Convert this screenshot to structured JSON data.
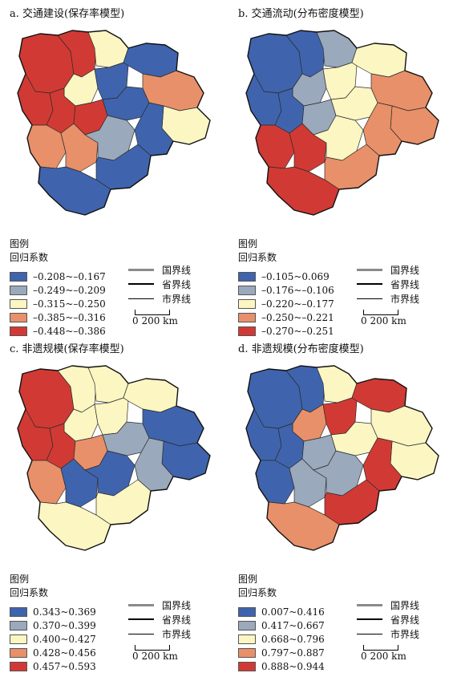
{
  "colors": {
    "blue": "#3f64ad",
    "grey_blue": "#9aa9bb",
    "pale_yellow": "#fbf6c2",
    "orange": "#e89069",
    "red": "#d13a34",
    "border_national": "#8a8a8a",
    "border_provincial": "#000000",
    "border_city": "#000000"
  },
  "panels": [
    {
      "title": "a. 交通建设(保存率模型)",
      "legend_title_1": "图例",
      "legend_title_2": "回归系数",
      "classes": [
        {
          "label": "–0.208~–0.167",
          "color": "#3f64ad"
        },
        {
          "label": "–0.249~–0.209",
          "color": "#9aa9bb"
        },
        {
          "label": "–0.315~–0.250",
          "color": "#fbf6c2"
        },
        {
          "label": "–0.385~–0.316",
          "color": "#e89069"
        },
        {
          "label": "–0.448~–0.386",
          "color": "#d13a34"
        }
      ],
      "regions": [
        "red",
        "red",
        "yellow",
        "blue",
        "red",
        "yellow",
        "blue",
        "red",
        "red",
        "blue",
        "orange",
        "yellow",
        "blue",
        "orange",
        "orange",
        "grey",
        "blue",
        "blue"
      ]
    },
    {
      "title": "b. 交通流动(分布密度模型)",
      "legend_title_1": "图例",
      "legend_title_2": "回归系数",
      "classes": [
        {
          "label": "–0.105~0.069",
          "color": "#3f64ad"
        },
        {
          "label": "–0.176~–0.106",
          "color": "#9aa9bb"
        },
        {
          "label": "–0.220~–0.177",
          "color": "#fbf6c2"
        },
        {
          "label": "–0.250~–0.221",
          "color": "#e89069"
        },
        {
          "label": "–0.270~–0.251",
          "color": "#d13a34"
        }
      ],
      "regions": [
        "blue",
        "blue",
        "grey",
        "yellow",
        "blue",
        "grey",
        "yellow",
        "blue",
        "grey",
        "yellow",
        "orange",
        "orange",
        "orange",
        "red",
        "red",
        "yellow",
        "orange",
        "red"
      ]
    },
    {
      "title": "c. 非遗规模(保存率模型)",
      "legend_title_1": "图例",
      "legend_title_2": "回归系数",
      "classes": [
        {
          "label": "0.343~0.369",
          "color": "#3f64ad"
        },
        {
          "label": "0.370~0.399",
          "color": "#9aa9bb"
        },
        {
          "label": "0.400~0.427",
          "color": "#fbf6c2"
        },
        {
          "label": "0.428~0.456",
          "color": "#e89069"
        },
        {
          "label": "0.457~0.593",
          "color": "#d13a34"
        }
      ],
      "regions": [
        "red",
        "yellow",
        "yellow",
        "yellow",
        "red",
        "yellow",
        "yellow",
        "red",
        "orange",
        "grey",
        "blue",
        "blue",
        "grey",
        "orange",
        "blue",
        "blue",
        "yellow",
        "yellow"
      ]
    },
    {
      "title": "d. 非遗规模(分布密度模型)",
      "legend_title_1": "图例",
      "legend_title_2": "回归系数",
      "classes": [
        {
          "label": "0.007~0.416",
          "color": "#3f64ad"
        },
        {
          "label": "0.417~0.667",
          "color": "#9aa9bb"
        },
        {
          "label": "0.668~0.796",
          "color": "#fbf6c2"
        },
        {
          "label": "0.797~0.887",
          "color": "#e89069"
        },
        {
          "label": "0.888~0.944",
          "color": "#d13a34"
        }
      ],
      "regions": [
        "blue",
        "blue",
        "yellow",
        "red",
        "blue",
        "orange",
        "red",
        "blue",
        "grey",
        "yellow",
        "yellow",
        "yellow",
        "red",
        "blue",
        "grey",
        "grey",
        "red",
        "orange"
      ]
    }
  ],
  "boundary_legend": {
    "national": "国界线",
    "provincial": "省界线",
    "city": "市界线"
  },
  "scale_bar": {
    "text": "0   200 km"
  }
}
